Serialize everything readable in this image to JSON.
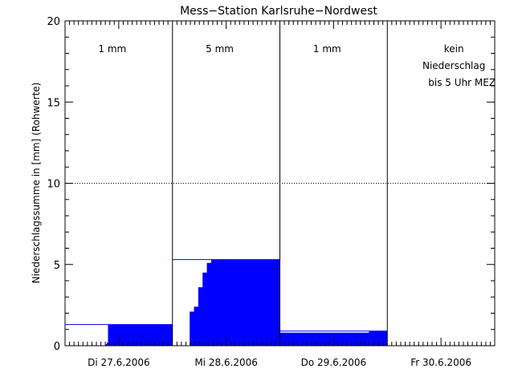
{
  "chart_data": {
    "type": "area",
    "title": "Mess−Station Karlsruhe−Nordwest",
    "ylabel": "Niederschlagssumme in [mm] (Rohwerte)",
    "xlabel": "",
    "ylim": [
      0,
      20
    ],
    "yticks": [
      0,
      5,
      10,
      15,
      20
    ],
    "xlim": [
      0,
      4
    ],
    "days": [
      {
        "label": "Di 27.6.2006",
        "annotation": [
          "1 mm"
        ]
      },
      {
        "label": "Mi 28.6.2006",
        "annotation": [
          "5 mm"
        ]
      },
      {
        "label": "Do 29.6.2006",
        "annotation": [
          "1 mm"
        ]
      },
      {
        "label": "Fr 30.6.2006",
        "annotation": [
          "kein",
          "Niederschlag",
          "bis 5 Uhr MEZ"
        ]
      }
    ],
    "reference_line": {
      "y": 10,
      "style": "dotted"
    },
    "daily_totals": [
      1.3,
      5.3,
      0.9,
      null
    ],
    "series": [
      {
        "color": "#0000ff",
        "segments": [
          {
            "x": [
              0.38,
              0.38,
              0.39,
              0.39,
              0.4,
              0.4,
              1.0
            ],
            "y": [
              0,
              0.1,
              0.1,
              0.2,
              0.2,
              1.3,
              1.3
            ]
          },
          {
            "x": [
              1.0,
              1.16,
              1.16,
              1.2,
              1.2,
              1.24,
              1.24,
              1.28,
              1.28,
              1.32,
              1.32,
              1.36,
              1.36,
              2.0
            ],
            "y": [
              0,
              0,
              2.1,
              2.1,
              2.4,
              2.4,
              3.6,
              3.6,
              4.5,
              4.5,
              5.1,
              5.1,
              5.3,
              5.3
            ]
          },
          {
            "x": [
              2.0,
              2.83,
              2.83,
              3.0
            ],
            "y": [
              0.8,
              0.8,
              0.9,
              0.9
            ]
          }
        ]
      }
    ]
  }
}
